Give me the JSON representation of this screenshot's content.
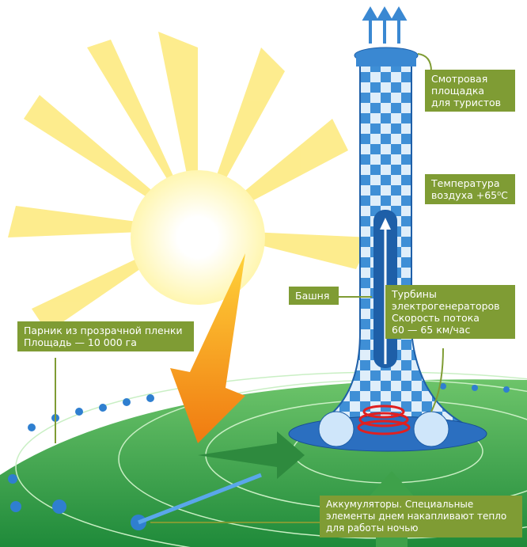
{
  "labels": [
    {
      "lines": [
        "Смотровая",
        "площадка",
        "для туристов"
      ]
    },
    {
      "lines": [
        "Температура",
        "воздуха +65⁰С"
      ]
    },
    {
      "lines": [
        "Башня"
      ]
    },
    {
      "lines": [
        "Турбины",
        "электрогенераторов",
        "Скорость потока",
        "60 — 65 км/час"
      ]
    },
    {
      "lines": [
        "Парник из прозрачной пленки",
        "Площадь — 10 000 га"
      ]
    },
    {
      "lines": [
        "Аккумуляторы. Специальные",
        "элементы днем накапливают тепло",
        "для работы ночью"
      ]
    }
  ]
}
